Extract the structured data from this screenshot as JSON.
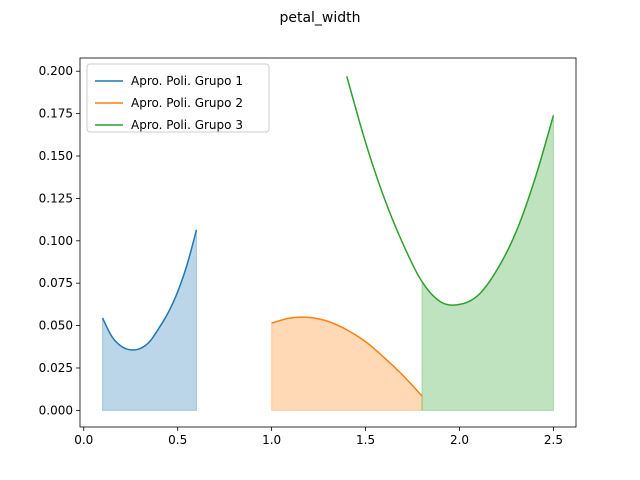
{
  "chart_data": {
    "type": "line",
    "title": "petal_width",
    "xlabel": "",
    "ylabel": "",
    "xlim": [
      -0.02,
      2.62
    ],
    "ylim": [
      -0.0098,
      0.2078
    ],
    "x_ticks": [
      0.0,
      0.5,
      1.0,
      1.5,
      2.0,
      2.5
    ],
    "x_tick_labels": [
      "0.0",
      "0.5",
      "1.0",
      "1.5",
      "2.0",
      "2.5"
    ],
    "y_ticks": [
      0.0,
      0.025,
      0.05,
      0.075,
      0.1,
      0.125,
      0.15,
      0.175,
      0.2
    ],
    "y_tick_labels": [
      "0.000",
      "0.025",
      "0.050",
      "0.075",
      "0.100",
      "0.125",
      "0.150",
      "0.175",
      "0.200"
    ],
    "legend_position": "top-left",
    "series": [
      {
        "name": "Apro. Poli. Grupo 1",
        "color": "#1f77b4",
        "x": [
          0.1,
          0.15,
          0.2,
          0.25,
          0.3,
          0.35,
          0.4,
          0.45,
          0.5,
          0.55,
          0.6
        ],
        "y": [
          0.0545,
          0.0435,
          0.0378,
          0.0357,
          0.0365,
          0.0405,
          0.0485,
          0.0578,
          0.07,
          0.086,
          0.1065
        ],
        "fill": {
          "from": 0.1,
          "to": 0.6
        }
      },
      {
        "name": "Apro. Poli. Grupo 2",
        "color": "#ff7f0e",
        "x": [
          1.0,
          1.1,
          1.2,
          1.3,
          1.4,
          1.5,
          1.6,
          1.7,
          1.8
        ],
        "y": [
          0.0515,
          0.0545,
          0.0548,
          0.0525,
          0.0475,
          0.0405,
          0.031,
          0.0205,
          0.0085
        ],
        "fill": {
          "from": 1.0,
          "to": 1.8
        }
      },
      {
        "name": "Apro. Poli. Grupo 3",
        "color": "#2ca02c",
        "x": [
          1.4,
          1.5,
          1.6,
          1.7,
          1.8,
          1.9,
          2.0,
          2.1,
          2.2,
          2.3,
          2.4,
          2.5
        ],
        "y": [
          0.197,
          0.158,
          0.125,
          0.098,
          0.076,
          0.064,
          0.0625,
          0.068,
          0.083,
          0.105,
          0.136,
          0.174
        ],
        "fill": {
          "from": 1.8,
          "to": 2.5
        }
      }
    ]
  }
}
